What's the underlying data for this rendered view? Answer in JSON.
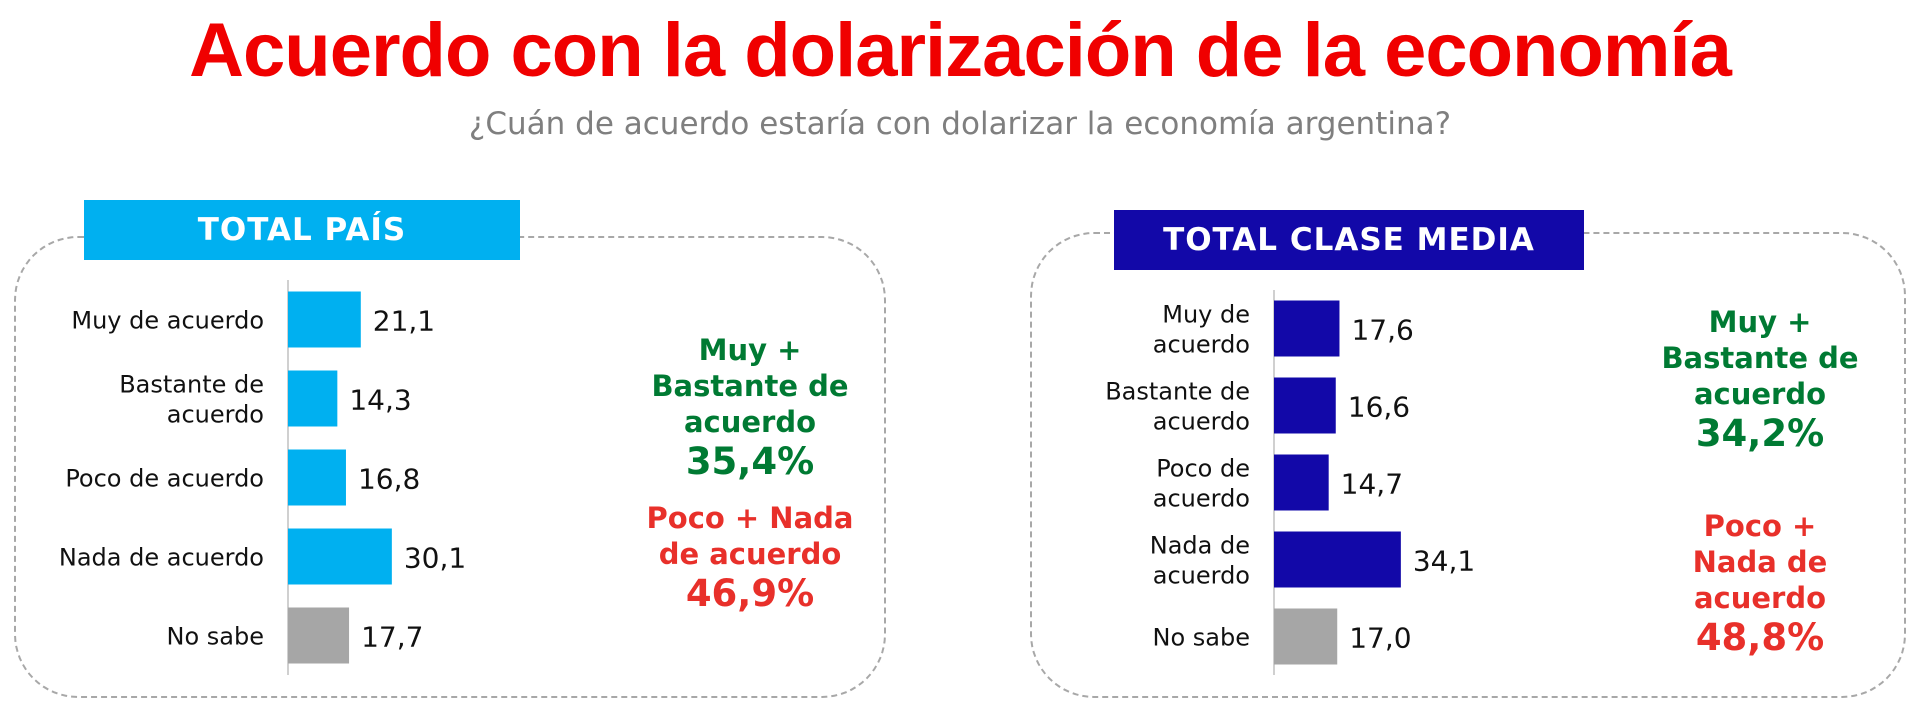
{
  "title": "Acuerdo con la dolarización de la economía",
  "subtitle": "¿Cuán de acuerdo estaría con dolarizar la economía argentina?",
  "colors": {
    "title": "#f00000",
    "subtitle": "#7f7f7f",
    "total_pais": "#00b0f0",
    "clase_media": "#1208a8",
    "no_sabe": "#a6a6a6",
    "agree": "#007a33",
    "disagree": "#e8302a"
  },
  "panels": [
    {
      "header": "TOTAL PAÍS",
      "agree_label": "Muy +\nBastante de\nacuerdo",
      "agree_value": "35,4%",
      "disagree_label": "Poco + Nada\nde acuerdo",
      "disagree_value": "46,9%"
    },
    {
      "header": "TOTAL CLASE MEDIA",
      "agree_label": "Muy +\nBastante de\nacuerdo",
      "agree_value": "34,2%",
      "disagree_label": "Poco +\nNada de\nacuerdo",
      "disagree_value": "48,8%"
    }
  ],
  "chart_data": [
    {
      "type": "bar",
      "orientation": "horizontal",
      "title": "TOTAL PAÍS",
      "categories": [
        "Muy de acuerdo",
        "Bastante de\nacuerdo",
        "Poco de acuerdo",
        "Nada de acuerdo",
        "No sabe"
      ],
      "values": [
        21.1,
        14.3,
        16.8,
        30.1,
        17.7
      ],
      "value_labels": [
        "21,1",
        "14,3",
        "16,8",
        "30,1",
        "17,7"
      ],
      "xlim": [
        0,
        100
      ],
      "grid": false,
      "legend": "none"
    },
    {
      "type": "bar",
      "orientation": "horizontal",
      "title": "TOTAL CLASE MEDIA",
      "categories": [
        "Muy de\nacuerdo",
        "Bastante de\nacuerdo",
        "Poco de\nacuerdo",
        "Nada de\nacuerdo",
        "No sabe"
      ],
      "values": [
        17.6,
        16.6,
        14.7,
        34.1,
        17.0
      ],
      "value_labels": [
        "17,6",
        "16,6",
        "14,7",
        "34,1",
        "17,0"
      ],
      "xlim": [
        0,
        100
      ],
      "grid": false,
      "legend": "none"
    }
  ]
}
